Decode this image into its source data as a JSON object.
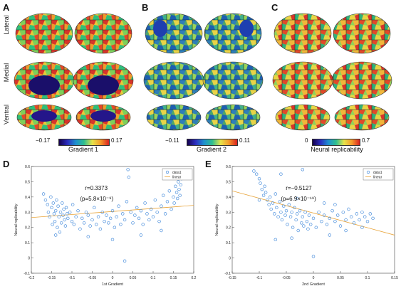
{
  "panels": {
    "A": {
      "letter": "A"
    },
    "B": {
      "letter": "B"
    },
    "C": {
      "letter": "C"
    },
    "D": {
      "letter": "D"
    },
    "E": {
      "letter": "E"
    }
  },
  "row_labels": [
    "Lateral",
    "Medial",
    "Ventral"
  ],
  "colorbars": [
    {
      "min": "−0.17",
      "max": "0.17",
      "title": "Gradient 1",
      "colors": [
        "#14004d",
        "#2b2dbf",
        "#1e8fd0",
        "#2fbf8f",
        "#e7e34a",
        "#f59a2a",
        "#d92020"
      ]
    },
    {
      "min": "−0.11",
      "max": "0.11",
      "title": "Gradient 2",
      "colors": [
        "#14004d",
        "#2b2dbf",
        "#1e8fd0",
        "#2fbf8f",
        "#e7e34a",
        "#f59a2a",
        "#d92020"
      ]
    },
    {
      "min": "0",
      "max": "0.7",
      "title": "Neural replicability",
      "colors": [
        "#14004d",
        "#2b2dbf",
        "#1e8fd0",
        "#2fbf8f",
        "#e7e34a",
        "#f59a2a",
        "#d92020"
      ]
    }
  ],
  "chart_data": [
    {
      "type": "scatter",
      "xlabel": "1st Gradient",
      "ylabel": "Neural replicability",
      "xlim": [
        -0.2,
        0.2
      ],
      "ylim": [
        -0.1,
        0.6
      ],
      "xticks": [
        "-0.2",
        "-0.15",
        "-0.1",
        "-0.05",
        "0",
        "0.05",
        "0.1",
        "0.15",
        "0.2"
      ],
      "yticks": [
        "-0.1",
        "0",
        "0.1",
        "0.2",
        "0.3",
        "0.4",
        "0.5",
        "0.6"
      ],
      "annotation_r": "r=0.3373",
      "annotation_p": "(p=5.8×10⁻⁹)",
      "legend": [
        "data1",
        "linear"
      ],
      "fit": {
        "x": [
          -0.2,
          0.2
        ],
        "y": [
          0.265,
          0.345
        ]
      },
      "points": [
        [
          -0.17,
          0.42
        ],
        [
          -0.165,
          0.38
        ],
        [
          -0.16,
          0.35
        ],
        [
          -0.158,
          0.3
        ],
        [
          -0.155,
          0.27
        ],
        [
          -0.152,
          0.4
        ],
        [
          -0.15,
          0.33
        ],
        [
          -0.148,
          0.22
        ],
        [
          -0.146,
          0.36
        ],
        [
          -0.144,
          0.29
        ],
        [
          -0.142,
          0.24
        ],
        [
          -0.14,
          0.31
        ],
        [
          -0.138,
          0.38
        ],
        [
          -0.136,
          0.2
        ],
        [
          -0.134,
          0.34
        ],
        [
          -0.132,
          0.27
        ],
        [
          -0.13,
          0.17
        ],
        [
          -0.128,
          0.3
        ],
        [
          -0.126,
          0.23
        ],
        [
          -0.124,
          0.36
        ],
        [
          -0.122,
          0.28
        ],
        [
          -0.12,
          0.32
        ],
        [
          -0.118,
          0.25
        ],
        [
          -0.116,
          0.21
        ],
        [
          -0.114,
          0.33
        ],
        [
          -0.112,
          0.29
        ],
        [
          -0.11,
          0.26
        ],
        [
          -0.105,
          0.3
        ],
        [
          -0.1,
          0.24
        ],
        [
          -0.098,
          0.35
        ],
        [
          -0.095,
          0.22
        ],
        [
          -0.09,
          0.27
        ],
        [
          -0.085,
          0.31
        ],
        [
          -0.08,
          0.19
        ],
        [
          -0.075,
          0.26
        ],
        [
          -0.07,
          0.23
        ],
        [
          -0.065,
          0.3
        ],
        [
          -0.06,
          0.28
        ],
        [
          -0.055,
          0.21
        ],
        [
          -0.05,
          0.25
        ],
        [
          -0.045,
          0.33
        ],
        [
          -0.04,
          0.22
        ],
        [
          -0.035,
          0.27
        ],
        [
          -0.03,
          0.19
        ],
        [
          -0.025,
          0.3
        ],
        [
          -0.02,
          0.24
        ],
        [
          -0.015,
          0.28
        ],
        [
          -0.01,
          0.23
        ],
        [
          -0.005,
          0.26
        ],
        [
          0.0,
          0.31
        ],
        [
          0.005,
          0.2
        ],
        [
          0.01,
          0.27
        ],
        [
          0.015,
          0.34
        ],
        [
          0.02,
          0.22
        ],
        [
          0.025,
          0.29
        ],
        [
          0.03,
          0.25
        ],
        [
          0.035,
          0.37
        ],
        [
          0.038,
          0.58
        ],
        [
          0.04,
          0.53
        ],
        [
          0.045,
          0.3
        ],
        [
          0.05,
          0.23
        ],
        [
          0.055,
          0.28
        ],
        [
          0.06,
          0.33
        ],
        [
          0.065,
          0.26
        ],
        [
          0.07,
          0.31
        ],
        [
          0.075,
          0.22
        ],
        [
          0.08,
          0.36
        ],
        [
          0.085,
          0.29
        ],
        [
          0.09,
          0.25
        ],
        [
          0.095,
          0.32
        ],
        [
          0.1,
          0.27
        ],
        [
          0.105,
          0.38
        ],
        [
          0.11,
          0.3
        ],
        [
          0.115,
          0.24
        ],
        [
          0.12,
          0.34
        ],
        [
          0.125,
          0.41
        ],
        [
          0.13,
          0.29
        ],
        [
          0.135,
          0.37
        ],
        [
          0.14,
          0.44
        ],
        [
          0.145,
          0.32
        ],
        [
          0.15,
          0.4
        ],
        [
          0.152,
          0.36
        ],
        [
          0.155,
          0.47
        ],
        [
          0.158,
          0.43
        ],
        [
          0.16,
          0.39
        ],
        [
          0.162,
          0.5
        ],
        [
          0.164,
          0.45
        ],
        [
          0.166,
          0.41
        ],
        [
          0.168,
          0.48
        ],
        [
          0.17,
          0.52
        ],
        [
          0.03,
          -0.02
        ],
        [
          -0.14,
          0.15
        ],
        [
          0.0,
          0.12
        ],
        [
          0.07,
          0.15
        ],
        [
          0.12,
          0.18
        ],
        [
          -0.06,
          0.14
        ]
      ]
    },
    {
      "type": "scatter",
      "xlabel": "2nd Gradient",
      "ylabel": "Neural replicability",
      "xlim": [
        -0.15,
        0.15
      ],
      "ylim": [
        -0.1,
        0.6
      ],
      "xticks": [
        "-0.15",
        "-0.1",
        "-0.05",
        "0",
        "0.05",
        "0.1",
        "0.15"
      ],
      "yticks": [
        "-0.1",
        "0",
        "0.1",
        "0.2",
        "0.3",
        "0.4",
        "0.5",
        "0.6"
      ],
      "annotation_r": "r=−0.5127",
      "annotation_p": "(p=6.9×10⁻¹⁹)",
      "legend": [
        "data1",
        "linear"
      ],
      "fit": {
        "x": [
          -0.15,
          0.15
        ],
        "y": [
          0.44,
          0.15
        ]
      },
      "points": [
        [
          -0.11,
          0.57
        ],
        [
          -0.105,
          0.55
        ],
        [
          -0.1,
          0.52
        ],
        [
          -0.098,
          0.49
        ],
        [
          -0.095,
          0.45
        ],
        [
          -0.092,
          0.41
        ],
        [
          -0.09,
          0.47
        ],
        [
          -0.088,
          0.43
        ],
        [
          -0.085,
          0.38
        ],
        [
          -0.082,
          0.35
        ],
        [
          -0.08,
          0.4
        ],
        [
          -0.078,
          0.32
        ],
        [
          -0.075,
          0.36
        ],
        [
          -0.072,
          0.29
        ],
        [
          -0.07,
          0.42
        ],
        [
          -0.068,
          0.33
        ],
        [
          -0.065,
          0.27
        ],
        [
          -0.062,
          0.37
        ],
        [
          -0.06,
          0.3
        ],
        [
          -0.058,
          0.25
        ],
        [
          -0.055,
          0.34
        ],
        [
          -0.052,
          0.28
        ],
        [
          -0.05,
          0.31
        ],
        [
          -0.048,
          0.22
        ],
        [
          -0.045,
          0.35
        ],
        [
          -0.042,
          0.27
        ],
        [
          -0.04,
          0.3
        ],
        [
          -0.038,
          0.2
        ],
        [
          -0.035,
          0.33
        ],
        [
          -0.032,
          0.25
        ],
        [
          -0.03,
          0.29
        ],
        [
          -0.028,
          0.18
        ],
        [
          -0.025,
          0.31
        ],
        [
          -0.022,
          0.23
        ],
        [
          -0.02,
          0.27
        ],
        [
          -0.018,
          0.21
        ],
        [
          -0.015,
          0.3
        ],
        [
          -0.012,
          0.24
        ],
        [
          -0.01,
          0.19
        ],
        [
          -0.008,
          0.28
        ],
        [
          -0.005,
          0.22
        ],
        [
          0.0,
          0.26
        ],
        [
          0.005,
          0.2
        ],
        [
          0.01,
          0.3
        ],
        [
          0.015,
          0.24
        ],
        [
          0.02,
          0.28
        ],
        [
          0.025,
          0.22
        ],
        [
          0.03,
          0.26
        ],
        [
          0.035,
          0.31
        ],
        [
          0.04,
          0.24
        ],
        [
          0.045,
          0.28
        ],
        [
          0.05,
          0.21
        ],
        [
          0.055,
          0.3
        ],
        [
          0.06,
          0.25
        ],
        [
          0.065,
          0.32
        ],
        [
          0.07,
          0.27
        ],
        [
          0.075,
          0.23
        ],
        [
          0.08,
          0.29
        ],
        [
          0.085,
          0.25
        ],
        [
          0.09,
          0.3
        ],
        [
          0.095,
          0.27
        ],
        [
          0.1,
          0.24
        ],
        [
          0.105,
          0.29
        ],
        [
          0.11,
          0.26
        ],
        [
          -0.06,
          0.55
        ],
        [
          -0.02,
          0.58
        ],
        [
          -0.1,
          0.38
        ],
        [
          -0.07,
          0.12
        ],
        [
          0.0,
          0.01
        ],
        [
          0.03,
          0.15
        ],
        [
          -0.04,
          0.13
        ],
        [
          0.06,
          0.18
        ],
        [
          0.09,
          0.2
        ],
        [
          -0.03,
          0.39
        ],
        [
          0.02,
          0.36
        ],
        [
          0.04,
          0.35
        ]
      ]
    }
  ]
}
